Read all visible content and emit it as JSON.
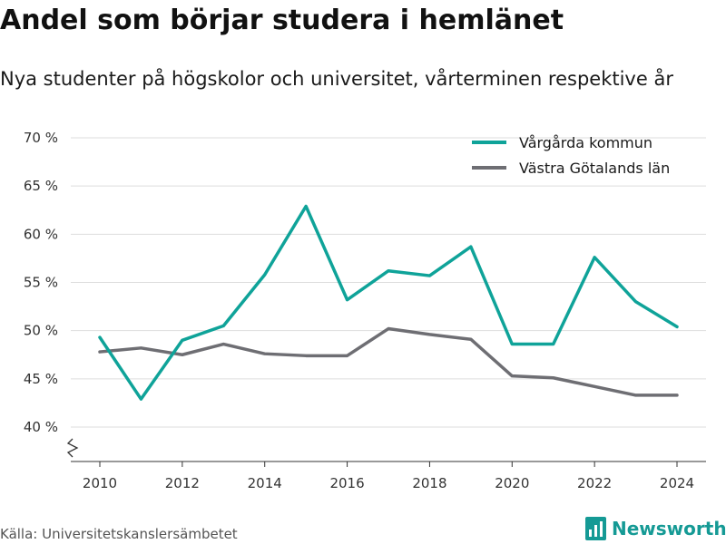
{
  "title": "Andel som börjar studera i hemlänet",
  "subtitle": "Nya studenter på högskolor och universitet, vårterminen respektive år",
  "source": "Källa: Universitetskanslersämbetet",
  "brand": {
    "name": "Newsworthy",
    "icon": "newsworthy-logo-icon",
    "color": "#159a95"
  },
  "chart_data": {
    "type": "line",
    "x": [
      2010,
      2011,
      2012,
      2013,
      2014,
      2015,
      2016,
      2017,
      2018,
      2019,
      2020,
      2021,
      2022,
      2023,
      2024
    ],
    "xticks": [
      2010,
      2012,
      2014,
      2016,
      2018,
      2020,
      2022,
      2024
    ],
    "xtick_labels": [
      "2010",
      "2012",
      "2014",
      "2016",
      "2018",
      "2020",
      "2022",
      "2024"
    ],
    "yticks": [
      40,
      45,
      50,
      55,
      60,
      65,
      70
    ],
    "ytick_labels": [
      "40 %",
      "45 %",
      "50 %",
      "55 %",
      "60 %",
      "65 %",
      "70 %"
    ],
    "ylim": [
      40,
      70
    ],
    "y_axis_break": true,
    "grid": "horizontal",
    "legend_position": "top-right",
    "series": [
      {
        "name": "Vårgårda kommun",
        "color": "#0fa399",
        "values": [
          49.3,
          42.9,
          49.0,
          50.5,
          55.8,
          62.9,
          53.2,
          56.2,
          55.7,
          58.7,
          48.6,
          48.6,
          57.6,
          53.0,
          50.4
        ]
      },
      {
        "name": "Västra Götalands län",
        "color": "#6e6e73",
        "values": [
          47.8,
          48.2,
          47.5,
          48.6,
          47.6,
          47.4,
          47.4,
          50.2,
          49.6,
          49.1,
          45.3,
          45.1,
          44.2,
          43.3,
          43.3
        ]
      }
    ]
  }
}
